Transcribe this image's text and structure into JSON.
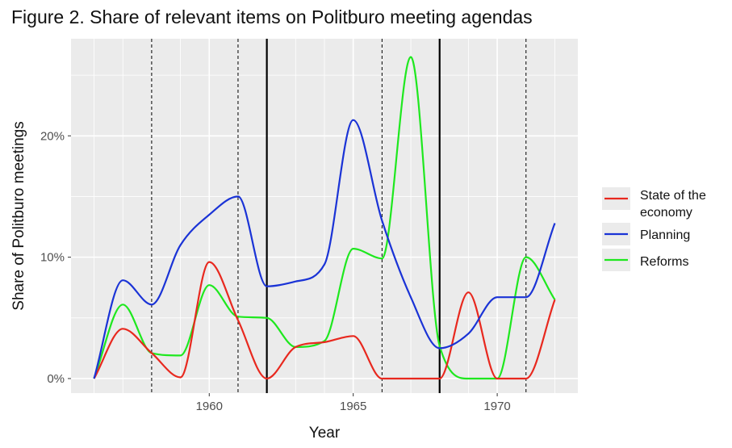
{
  "chart_data": {
    "type": "line",
    "title": "Figure 2. Share of relevant items on Politburo meeting agendas",
    "xlabel": "Year",
    "ylabel": "Share of Politburo meetings",
    "xlim": [
      1955.2,
      1972.8
    ],
    "ylim": [
      -1.2,
      28
    ],
    "x_ticks": [
      1960,
      1965,
      1970
    ],
    "x_tick_labels": [
      "1960",
      "1965",
      "1970"
    ],
    "y_ticks": [
      0,
      10,
      20
    ],
    "y_tick_labels": [
      "0%",
      "10%",
      "20%"
    ],
    "grid": true,
    "legend_position": "right",
    "background": "#ebebeb",
    "solid_vlines": [
      1962,
      1968
    ],
    "dashed_vlines": [
      1958,
      1961,
      1966,
      1971
    ],
    "series": [
      {
        "name": "State of the economy",
        "legend_lines": [
          "State of the",
          "economy"
        ],
        "color": "#e8281e",
        "x": [
          1956,
          1957,
          1958,
          1959,
          1960,
          1961,
          1962,
          1963,
          1964,
          1965,
          1966,
          1967,
          1968,
          1969,
          1970,
          1971,
          1972
        ],
        "values": [
          0,
          4.1,
          2.1,
          0.1,
          9.6,
          4.8,
          0,
          2.6,
          3.0,
          3.5,
          0,
          0,
          0,
          7.1,
          0,
          0,
          6.5
        ]
      },
      {
        "name": "Planning",
        "legend_lines": [
          "Planning"
        ],
        "color": "#1a33d6",
        "x": [
          1956,
          1957,
          1958,
          1959,
          1960,
          1961,
          1962,
          1963,
          1964,
          1965,
          1966,
          1967,
          1968,
          1969,
          1970,
          1971,
          1972
        ],
        "values": [
          0,
          8.1,
          6.1,
          11.0,
          13.5,
          15.0,
          7.6,
          8.0,
          9.4,
          21.3,
          13.0,
          6.7,
          2.5,
          3.7,
          6.7,
          6.7,
          12.8
        ]
      },
      {
        "name": "Reforms",
        "legend_lines": [
          "Reforms"
        ],
        "color": "#1ee81e",
        "x": [
          1956,
          1957,
          1958,
          1959,
          1960,
          1961,
          1962,
          1963,
          1964,
          1965,
          1966,
          1967,
          1968,
          1969,
          1970,
          1971,
          1972
        ],
        "values": [
          0,
          6.1,
          2.1,
          1.9,
          7.7,
          5.1,
          5.0,
          2.6,
          3.1,
          10.7,
          9.9,
          26.5,
          2.7,
          0,
          0,
          10.0,
          6.5
        ]
      }
    ]
  }
}
